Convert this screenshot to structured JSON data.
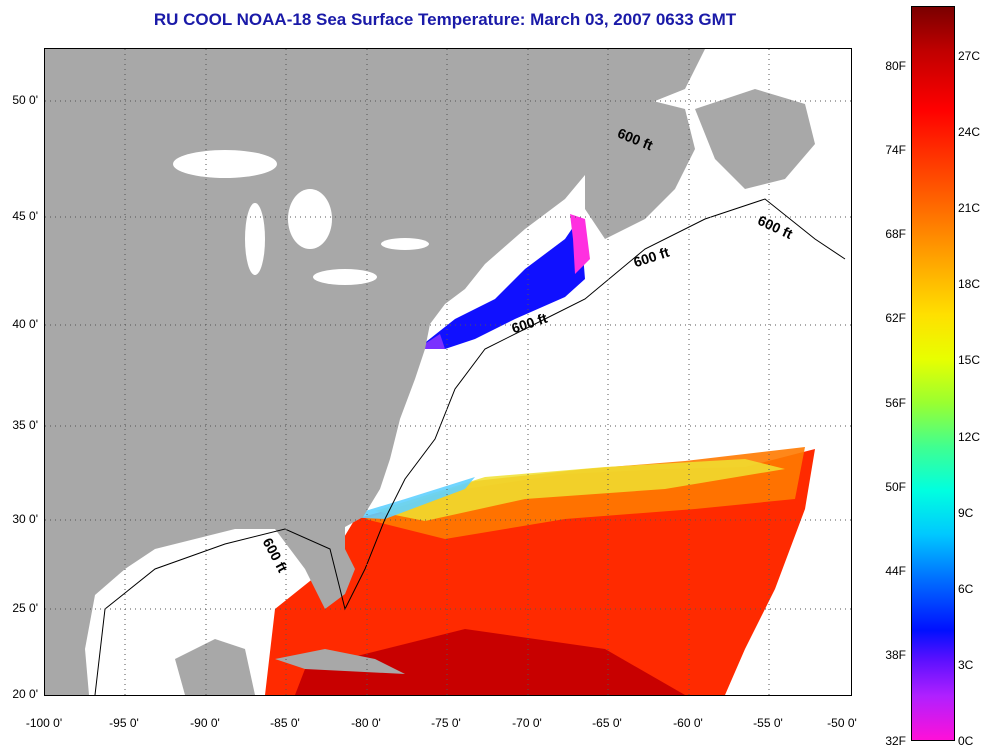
{
  "title": "RU COOL  NOAA-18  Sea Surface Temperature:  March 03, 2007 0633 GMT",
  "axes": {
    "lat_labels": [
      "50 0'",
      "45 0'",
      "40 0'",
      "35 0'",
      "30 0'",
      "25 0'",
      "20 0'"
    ],
    "lon_labels": [
      "-100 0'",
      "-95 0'",
      "-90 0'",
      "-85 0'",
      "-80 0'",
      "-75 0'",
      "-70 0'",
      "-65 0'",
      "-60 0'",
      "-55 0'",
      "-50 0'"
    ]
  },
  "contour_labels": [
    "600 ft",
    "600 ft",
    "600 ft",
    "600 ft",
    "600 ft"
  ],
  "colorbar": {
    "fahrenheit_labels": [
      "80F",
      "74F",
      "68F",
      "62F",
      "56F",
      "50F",
      "44F",
      "38F",
      "32F"
    ],
    "celsius_labels": [
      "27C",
      "24C",
      "21C",
      "18C",
      "15C",
      "12C",
      "9C",
      "6C",
      "3C",
      "0C"
    ]
  },
  "colors": {
    "title": "#1a1aa8",
    "land": "#a8a8a8",
    "water_no_data": "#ffffff",
    "warm": "#ff2a00",
    "cold": "#1010ff"
  }
}
